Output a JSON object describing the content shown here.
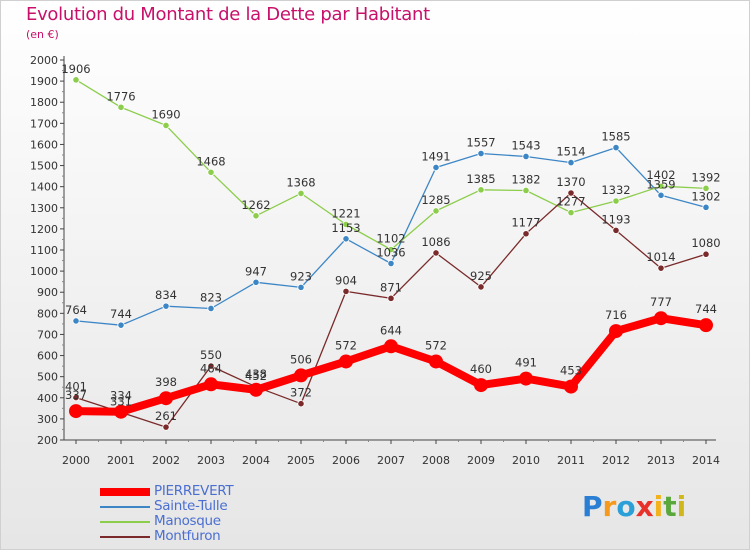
{
  "title": "Evolution du Montant de la Dette par Habitant",
  "subtitle": "(en €)",
  "brand": {
    "letters": [
      "P",
      "r",
      "o",
      "x",
      "i",
      "t",
      "i"
    ],
    "colors": [
      "#2a7fd4",
      "#f59a1c",
      "#2a9fd8",
      "#e8312a",
      "#f2b21c",
      "#5aa83c",
      "#d0b81c"
    ]
  },
  "chart_data": {
    "type": "line",
    "x": [
      2000,
      2001,
      2002,
      2003,
      2004,
      2005,
      2006,
      2007,
      2008,
      2009,
      2010,
      2011,
      2012,
      2013,
      2014
    ],
    "ylim": [
      200,
      2000
    ],
    "yticks": [
      200,
      300,
      400,
      500,
      600,
      700,
      800,
      900,
      1000,
      1100,
      1200,
      1300,
      1400,
      1500,
      1600,
      1700,
      1800,
      1900,
      2000
    ],
    "grid": false,
    "legend_position": "bottom-left",
    "series": [
      {
        "name": "PIERREVERT",
        "color": "#ff0000",
        "values": [
          337,
          334,
          398,
          464,
          438,
          506,
          572,
          644,
          572,
          460,
          491,
          453,
          716,
          777,
          744
        ],
        "labels": [
          "337",
          "334",
          "398",
          "464",
          "438",
          "506",
          "572",
          "644",
          "572",
          "460",
          "491",
          "453",
          "716",
          "777",
          "744"
        ]
      },
      {
        "name": "Sainte-Tulle",
        "color": "#3d86c6",
        "values": [
          764,
          744,
          834,
          823,
          947,
          923,
          1153,
          1036,
          1491,
          1557,
          1543,
          1514,
          1585,
          1359,
          1302
        ],
        "labels": [
          "764",
          "744",
          "834",
          "823",
          "947",
          "923",
          "1153",
          "1036",
          "1491",
          "1557",
          "1543",
          "1514",
          "1585",
          "1359",
          "1302"
        ]
      },
      {
        "name": "Manosque",
        "color": "#8ccd4b",
        "values": [
          1906,
          1776,
          1690,
          1468,
          1262,
          1368,
          1221,
          1102,
          1285,
          1385,
          1382,
          1277,
          1332,
          1402,
          1392
        ],
        "labels": [
          "1906",
          "1776",
          "1690",
          "1468",
          "1262",
          "1368",
          "1221",
          "1102",
          "1285",
          "1385",
          "1382",
          "1277",
          "1332",
          "1402",
          "1392"
        ]
      },
      {
        "name": "Montfuron",
        "color": "#7a2a2a",
        "values": [
          401,
          331,
          261,
          550,
          452,
          372,
          904,
          871,
          1086,
          925,
          1177,
          1370,
          1193,
          1014,
          1080
        ],
        "labels": [
          "401",
          "331",
          "261",
          "550",
          "452",
          "372",
          "904",
          "871",
          "1086",
          "925",
          "1177",
          "1370",
          "1193",
          "1014",
          "1080"
        ]
      }
    ]
  }
}
